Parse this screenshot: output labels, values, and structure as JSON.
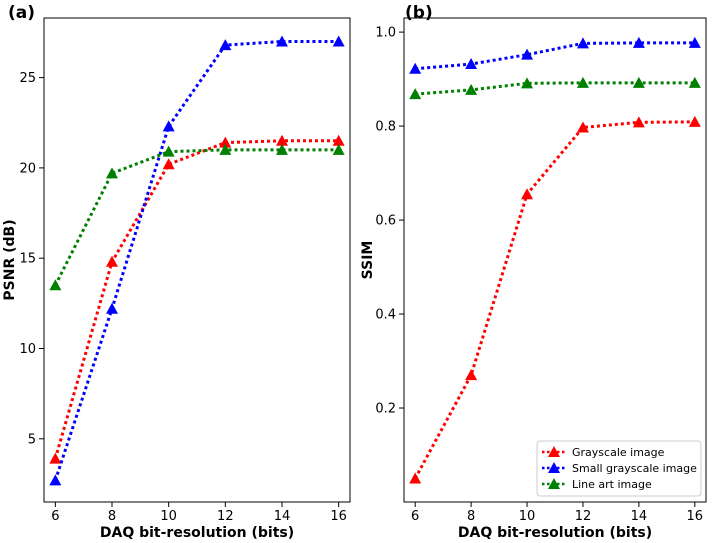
{
  "panels": {
    "a": {
      "label": "(a)"
    },
    "b": {
      "label": "(b)"
    }
  },
  "legend": {
    "entries": [
      "Grayscale image",
      "Small grayscale image",
      "Line art image"
    ]
  },
  "chart_data": [
    {
      "id": "a",
      "type": "line",
      "title": "(a)",
      "xlabel": "DAQ bit-resolution (bits)",
      "ylabel": "PSNR (dB)",
      "x": [
        6,
        8,
        10,
        12,
        14,
        16
      ],
      "xticks": [
        6,
        8,
        10,
        12,
        14,
        16
      ],
      "yticks": [
        5,
        10,
        15,
        20,
        25
      ],
      "xlim": [
        5.6,
        16.4
      ],
      "ylim": [
        1.5,
        28.3
      ],
      "grid": false,
      "series": [
        {
          "name": "Grayscale image",
          "color": "#ff0000",
          "values": [
            3.9,
            14.8,
            20.2,
            21.4,
            21.5,
            21.5
          ]
        },
        {
          "name": "Small grayscale image",
          "color": "#0000ff",
          "values": [
            2.7,
            12.2,
            22.3,
            26.8,
            27.0,
            27.0
          ]
        },
        {
          "name": "Line art image",
          "color": "#008000",
          "values": [
            13.5,
            19.7,
            20.9,
            21.0,
            21.0,
            21.0
          ]
        }
      ]
    },
    {
      "id": "b",
      "type": "line",
      "title": "(b)",
      "xlabel": "DAQ bit-resolution (bits)",
      "ylabel": "SSIM",
      "x": [
        6,
        8,
        10,
        12,
        14,
        16
      ],
      "xticks": [
        6,
        8,
        10,
        12,
        14,
        16
      ],
      "yticks": [
        0.2,
        0.4,
        0.6,
        0.8,
        1.0
      ],
      "ytick_labels": [
        "0.2",
        "0.4",
        "0.6",
        "0.8",
        "1.0"
      ],
      "xlim": [
        5.6,
        16.4
      ],
      "ylim": [
        0.0,
        1.03
      ],
      "grid": false,
      "legend_position": "lower-right",
      "series": [
        {
          "name": "Grayscale image",
          "color": "#ff0000",
          "values": [
            0.05,
            0.27,
            0.655,
            0.797,
            0.808,
            0.809
          ]
        },
        {
          "name": "Small grayscale image",
          "color": "#0000ff",
          "values": [
            0.922,
            0.932,
            0.952,
            0.976,
            0.977,
            0.977
          ]
        },
        {
          "name": "Line art image",
          "color": "#008000",
          "values": [
            0.868,
            0.877,
            0.891,
            0.892,
            0.892,
            0.892
          ]
        }
      ]
    }
  ]
}
